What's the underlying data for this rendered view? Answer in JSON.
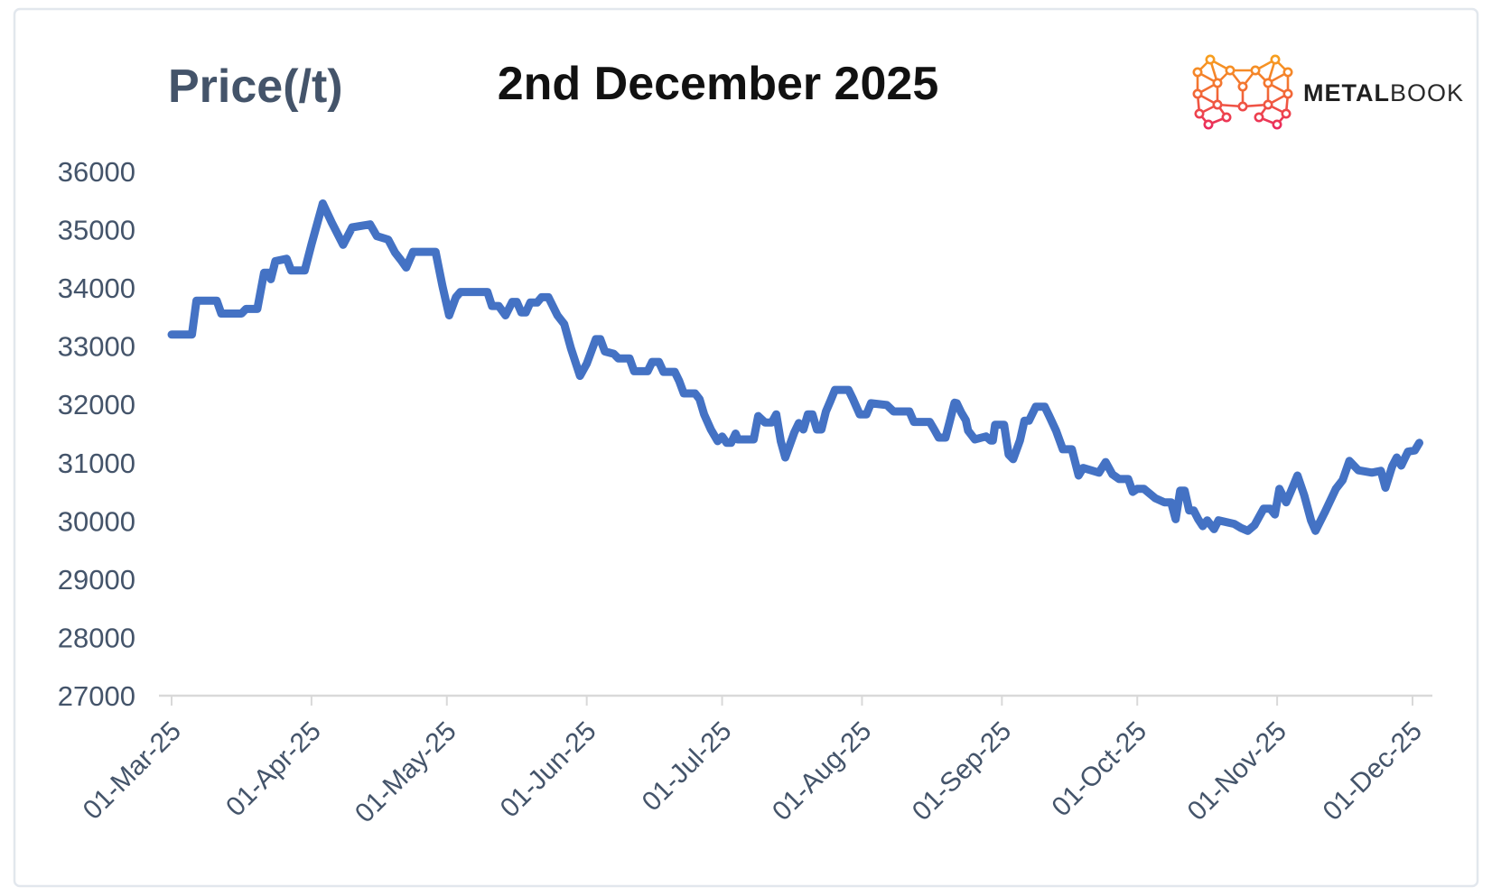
{
  "header": {
    "axis_unit_label": "Price(/t)",
    "title": "2nd December 2025",
    "logo": {
      "brand_bold": "METAL",
      "brand_light": "BOOK"
    }
  },
  "colors": {
    "line": "#4472C4",
    "axis_text": "#44546A",
    "title_text": "#111111",
    "axis_line": "#D9D9D9",
    "frame_border": "#E2E7ED",
    "logo_orange": "#F7A01E",
    "logo_mid": "#F26A35",
    "logo_pink": "#EA2A5D",
    "logo_text": "#1F1F1F"
  },
  "chart_data": {
    "type": "line",
    "title": "2nd December 2025",
    "ylabel": "Price(/t)",
    "xlabel": "",
    "grid": false,
    "legend": "none",
    "ylim": [
      27000,
      36000
    ],
    "y_ticks": [
      36000,
      35000,
      34000,
      33000,
      32000,
      31000,
      30000,
      29000,
      28000,
      27000
    ],
    "xlim_days": [
      0,
      277
    ],
    "x_unit": "days since 01-Mar-25",
    "x_ticks": [
      {
        "day": 0,
        "label": "01-Mar-25"
      },
      {
        "day": 31,
        "label": "01-Apr-25"
      },
      {
        "day": 61,
        "label": "01-May-25"
      },
      {
        "day": 92,
        "label": "01-Jun-25"
      },
      {
        "day": 122,
        "label": "01-Jul-25"
      },
      {
        "day": 153,
        "label": "01-Aug-25"
      },
      {
        "day": 184,
        "label": "01-Sep-25"
      },
      {
        "day": 214,
        "label": "01-Oct-25"
      },
      {
        "day": 245,
        "label": "01-Nov-25"
      },
      {
        "day": 275,
        "label": "01-Dec-25"
      }
    ],
    "series": [
      {
        "name": "Price (/t)",
        "color": "#4472C4",
        "points": [
          [
            0,
            33200
          ],
          [
            4.5,
            33200
          ],
          [
            5.5,
            33780
          ],
          [
            10,
            33780
          ],
          [
            11,
            33560
          ],
          [
            15.5,
            33560
          ],
          [
            16.5,
            33640
          ],
          [
            19,
            33640
          ],
          [
            20.5,
            34260
          ],
          [
            21.5,
            34260
          ],
          [
            22,
            34150
          ],
          [
            23,
            34460
          ],
          [
            25.5,
            34500
          ],
          [
            26.5,
            34300
          ],
          [
            29.5,
            34300
          ],
          [
            31,
            34750
          ],
          [
            33.5,
            35450
          ],
          [
            35.5,
            35120
          ],
          [
            38,
            34740
          ],
          [
            40,
            35040
          ],
          [
            44,
            35090
          ],
          [
            45.5,
            34890
          ],
          [
            48,
            34830
          ],
          [
            49.5,
            34610
          ],
          [
            51,
            34460
          ],
          [
            52,
            34350
          ],
          [
            53.5,
            34620
          ],
          [
            58.5,
            34620
          ],
          [
            60,
            34040
          ],
          [
            61.5,
            33530
          ],
          [
            63,
            33840
          ],
          [
            64,
            33930
          ],
          [
            70,
            33930
          ],
          [
            71,
            33690
          ],
          [
            72.5,
            33690
          ],
          [
            74,
            33530
          ],
          [
            75.5,
            33760
          ],
          [
            76.5,
            33760
          ],
          [
            77.5,
            33580
          ],
          [
            78.5,
            33580
          ],
          [
            79.5,
            33750
          ],
          [
            81,
            33750
          ],
          [
            82,
            33840
          ],
          [
            83.5,
            33840
          ],
          [
            85.5,
            33530
          ],
          [
            87,
            33380
          ],
          [
            88.5,
            32960
          ],
          [
            90.5,
            32490
          ],
          [
            92,
            32700
          ],
          [
            94,
            33120
          ],
          [
            95,
            33120
          ],
          [
            96,
            32910
          ],
          [
            98,
            32870
          ],
          [
            99,
            32790
          ],
          [
            101.5,
            32790
          ],
          [
            102.5,
            32570
          ],
          [
            105.5,
            32570
          ],
          [
            106.5,
            32730
          ],
          [
            108,
            32730
          ],
          [
            109,
            32560
          ],
          [
            111.5,
            32560
          ],
          [
            112.5,
            32400
          ],
          [
            113.5,
            32190
          ],
          [
            116,
            32190
          ],
          [
            117,
            32090
          ],
          [
            118,
            31830
          ],
          [
            119.5,
            31570
          ],
          [
            121,
            31370
          ],
          [
            122,
            31450
          ],
          [
            123,
            31340
          ],
          [
            124,
            31340
          ],
          [
            125,
            31500
          ],
          [
            125.5,
            31400
          ],
          [
            129,
            31400
          ],
          [
            130,
            31800
          ],
          [
            131.5,
            31690
          ],
          [
            133,
            31690
          ],
          [
            134,
            31830
          ],
          [
            135,
            31370
          ],
          [
            136,
            31090
          ],
          [
            138,
            31520
          ],
          [
            139,
            31680
          ],
          [
            140,
            31570
          ],
          [
            141,
            31830
          ],
          [
            142,
            31830
          ],
          [
            143,
            31570
          ],
          [
            144,
            31570
          ],
          [
            145,
            31880
          ],
          [
            146,
            32060
          ],
          [
            147,
            32250
          ],
          [
            150,
            32250
          ],
          [
            151,
            32090
          ],
          [
            152.5,
            31830
          ],
          [
            154,
            31830
          ],
          [
            155,
            32020
          ],
          [
            158.5,
            31990
          ],
          [
            160,
            31880
          ],
          [
            163.5,
            31880
          ],
          [
            164.5,
            31700
          ],
          [
            168,
            31700
          ],
          [
            169,
            31570
          ],
          [
            170,
            31430
          ],
          [
            171.5,
            31430
          ],
          [
            172.5,
            31730
          ],
          [
            173.5,
            32030
          ],
          [
            174,
            32020
          ],
          [
            175,
            31860
          ],
          [
            176,
            31730
          ],
          [
            176.5,
            31550
          ],
          [
            178,
            31400
          ],
          [
            180.5,
            31450
          ],
          [
            181.5,
            31380
          ],
          [
            182,
            31380
          ],
          [
            182.5,
            31650
          ],
          [
            184.5,
            31650
          ],
          [
            185.5,
            31140
          ],
          [
            186.5,
            31060
          ],
          [
            188,
            31380
          ],
          [
            189,
            31720
          ],
          [
            190,
            31720
          ],
          [
            191.5,
            31960
          ],
          [
            193.5,
            31960
          ],
          [
            194.5,
            31800
          ],
          [
            196,
            31550
          ],
          [
            197.5,
            31230
          ],
          [
            199.5,
            31230
          ],
          [
            201,
            30780
          ],
          [
            202,
            30910
          ],
          [
            205.5,
            30830
          ],
          [
            207,
            31010
          ],
          [
            208.5,
            30800
          ],
          [
            210,
            30720
          ],
          [
            212,
            30720
          ],
          [
            213,
            30500
          ],
          [
            214,
            30550
          ],
          [
            215.5,
            30550
          ],
          [
            218,
            30390
          ],
          [
            220,
            30320
          ],
          [
            221.5,
            30320
          ],
          [
            222.5,
            30030
          ],
          [
            223.5,
            30520
          ],
          [
            224.5,
            30520
          ],
          [
            225.5,
            30180
          ],
          [
            226.5,
            30180
          ],
          [
            227.5,
            30030
          ],
          [
            228.5,
            29910
          ],
          [
            229.5,
            30010
          ],
          [
            231,
            29860
          ],
          [
            232,
            30010
          ],
          [
            235.5,
            29950
          ],
          [
            237,
            29880
          ],
          [
            238.5,
            29830
          ],
          [
            240,
            29930
          ],
          [
            242,
            30210
          ],
          [
            243.5,
            30210
          ],
          [
            244.5,
            30110
          ],
          [
            245.5,
            30550
          ],
          [
            247,
            30320
          ],
          [
            248,
            30500
          ],
          [
            249.5,
            30780
          ],
          [
            251,
            30440
          ],
          [
            252.5,
            30010
          ],
          [
            253.5,
            29830
          ],
          [
            255.5,
            30140
          ],
          [
            258,
            30550
          ],
          [
            259.5,
            30700
          ],
          [
            261,
            31030
          ],
          [
            263,
            30870
          ],
          [
            266,
            30830
          ],
          [
            268,
            30860
          ],
          [
            269,
            30570
          ],
          [
            270.5,
            30940
          ],
          [
            271.5,
            31090
          ],
          [
            272.5,
            30950
          ],
          [
            274,
            31190
          ],
          [
            275.5,
            31210
          ],
          [
            276.5,
            31340
          ]
        ]
      }
    ]
  }
}
